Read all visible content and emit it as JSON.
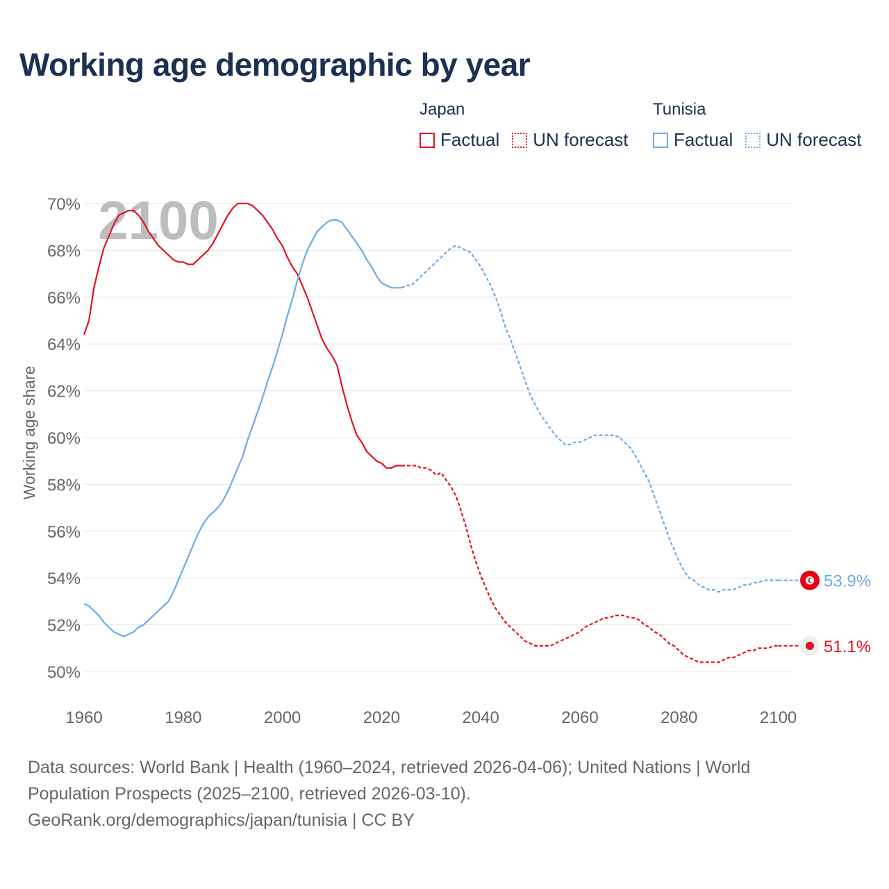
{
  "title": "Working age demographic by year",
  "footer": {
    "line1": "Data sources: World Bank | Health (1960–2024, retrieved 2026-04-06); United Nations | World",
    "line2": "Population Prospects (2025–2100, retrieved 2026-03-10).",
    "line3": "GeoRank.org/demographics/japan/tunisia | CC BY"
  },
  "legend": {
    "japan": {
      "heading": "Japan",
      "factual": "Factual",
      "forecast": "UN forecast"
    },
    "tunisia": {
      "heading": "Tunisia",
      "factual": "Factual",
      "forecast": "UN forecast"
    }
  },
  "chart_data": {
    "type": "line",
    "title": "Working age demographic by year",
    "year_watermark": "2100",
    "xlabel": "",
    "ylabel": "Working age share",
    "xlim": [
      1960,
      2103
    ],
    "ylim": [
      50,
      70
    ],
    "x_ticks": [
      1960,
      1980,
      2000,
      2020,
      2040,
      2060,
      2080,
      2100
    ],
    "y_ticks": [
      50,
      52,
      54,
      56,
      58,
      60,
      62,
      64,
      66,
      68,
      70
    ],
    "y_tick_suffix": "%",
    "grid": true,
    "factual_end_year": 2024,
    "series": [
      {
        "name": "Japan",
        "color": "#e5111d",
        "end_label": "51.1%",
        "points": [
          [
            1960,
            64.4
          ],
          [
            1961,
            65.0
          ],
          [
            1962,
            66.4
          ],
          [
            1963,
            67.3
          ],
          [
            1964,
            68.1
          ],
          [
            1965,
            68.6
          ],
          [
            1966,
            69.1
          ],
          [
            1967,
            69.5
          ],
          [
            1968,
            69.6
          ],
          [
            1969,
            69.7
          ],
          [
            1970,
            69.7
          ],
          [
            1971,
            69.5
          ],
          [
            1972,
            69.2
          ],
          [
            1973,
            68.8
          ],
          [
            1974,
            68.5
          ],
          [
            1975,
            68.2
          ],
          [
            1976,
            68.0
          ],
          [
            1977,
            67.8
          ],
          [
            1978,
            67.6
          ],
          [
            1979,
            67.5
          ],
          [
            1980,
            67.5
          ],
          [
            1981,
            67.4
          ],
          [
            1982,
            67.4
          ],
          [
            1983,
            67.6
          ],
          [
            1984,
            67.8
          ],
          [
            1985,
            68.0
          ],
          [
            1986,
            68.3
          ],
          [
            1987,
            68.7
          ],
          [
            1988,
            69.1
          ],
          [
            1989,
            69.5
          ],
          [
            1990,
            69.8
          ],
          [
            1991,
            70.0
          ],
          [
            1992,
            70.0
          ],
          [
            1993,
            70.0
          ],
          [
            1994,
            69.9
          ],
          [
            1995,
            69.7
          ],
          [
            1996,
            69.5
          ],
          [
            1997,
            69.2
          ],
          [
            1998,
            68.9
          ],
          [
            1999,
            68.5
          ],
          [
            2000,
            68.2
          ],
          [
            2001,
            67.7
          ],
          [
            2002,
            67.3
          ],
          [
            2003,
            67.0
          ],
          [
            2004,
            66.5
          ],
          [
            2005,
            66.0
          ],
          [
            2006,
            65.4
          ],
          [
            2007,
            64.8
          ],
          [
            2008,
            64.2
          ],
          [
            2009,
            63.8
          ],
          [
            2010,
            63.5
          ],
          [
            2011,
            63.1
          ],
          [
            2012,
            62.2
          ],
          [
            2013,
            61.4
          ],
          [
            2014,
            60.7
          ],
          [
            2015,
            60.1
          ],
          [
            2016,
            59.8
          ],
          [
            2017,
            59.4
          ],
          [
            2018,
            59.2
          ],
          [
            2019,
            59.0
          ],
          [
            2020,
            58.9
          ],
          [
            2021,
            58.7
          ],
          [
            2022,
            58.7
          ],
          [
            2023,
            58.8
          ],
          [
            2024,
            58.8
          ],
          [
            2025,
            58.8
          ],
          [
            2026,
            58.8
          ],
          [
            2027,
            58.8
          ],
          [
            2028,
            58.7
          ],
          [
            2029,
            58.7
          ],
          [
            2030,
            58.6
          ],
          [
            2031,
            58.4
          ],
          [
            2032,
            58.5
          ],
          [
            2033,
            58.2
          ],
          [
            2034,
            57.9
          ],
          [
            2035,
            57.5
          ],
          [
            2036,
            56.9
          ],
          [
            2037,
            56.2
          ],
          [
            2038,
            55.4
          ],
          [
            2039,
            54.7
          ],
          [
            2040,
            54.1
          ],
          [
            2041,
            53.6
          ],
          [
            2042,
            53.1
          ],
          [
            2043,
            52.7
          ],
          [
            2044,
            52.4
          ],
          [
            2045,
            52.1
          ],
          [
            2046,
            51.9
          ],
          [
            2047,
            51.7
          ],
          [
            2048,
            51.5
          ],
          [
            2049,
            51.3
          ],
          [
            2050,
            51.2
          ],
          [
            2051,
            51.1
          ],
          [
            2052,
            51.1
          ],
          [
            2053,
            51.1
          ],
          [
            2054,
            51.1
          ],
          [
            2055,
            51.2
          ],
          [
            2056,
            51.3
          ],
          [
            2057,
            51.4
          ],
          [
            2058,
            51.5
          ],
          [
            2059,
            51.6
          ],
          [
            2060,
            51.7
          ],
          [
            2061,
            51.9
          ],
          [
            2062,
            52.0
          ],
          [
            2063,
            52.1
          ],
          [
            2064,
            52.2
          ],
          [
            2065,
            52.3
          ],
          [
            2066,
            52.3
          ],
          [
            2067,
            52.4
          ],
          [
            2068,
            52.4
          ],
          [
            2069,
            52.4
          ],
          [
            2070,
            52.3
          ],
          [
            2071,
            52.3
          ],
          [
            2072,
            52.2
          ],
          [
            2073,
            52.0
          ],
          [
            2074,
            51.9
          ],
          [
            2075,
            51.7
          ],
          [
            2076,
            51.6
          ],
          [
            2077,
            51.4
          ],
          [
            2078,
            51.2
          ],
          [
            2079,
            51.1
          ],
          [
            2080,
            50.9
          ],
          [
            2081,
            50.7
          ],
          [
            2082,
            50.6
          ],
          [
            2083,
            50.5
          ],
          [
            2084,
            50.4
          ],
          [
            2085,
            50.4
          ],
          [
            2086,
            50.4
          ],
          [
            2087,
            50.4
          ],
          [
            2088,
            50.4
          ],
          [
            2089,
            50.5
          ],
          [
            2090,
            50.6
          ],
          [
            2091,
            50.6
          ],
          [
            2092,
            50.7
          ],
          [
            2093,
            50.8
          ],
          [
            2094,
            50.9
          ],
          [
            2095,
            50.9
          ],
          [
            2096,
            51.0
          ],
          [
            2097,
            51.0
          ],
          [
            2098,
            51.0
          ],
          [
            2099,
            51.1
          ],
          [
            2100,
            51.1
          ]
        ]
      },
      {
        "name": "Tunisia",
        "color": "#6aabe6",
        "end_label": "53.9%",
        "points": [
          [
            1960,
            52.9
          ],
          [
            1961,
            52.8
          ],
          [
            1962,
            52.6
          ],
          [
            1963,
            52.4
          ],
          [
            1964,
            52.1
          ],
          [
            1965,
            51.9
          ],
          [
            1966,
            51.7
          ],
          [
            1967,
            51.6
          ],
          [
            1968,
            51.5
          ],
          [
            1969,
            51.6
          ],
          [
            1970,
            51.7
          ],
          [
            1971,
            51.9
          ],
          [
            1972,
            52.0
          ],
          [
            1973,
            52.2
          ],
          [
            1974,
            52.4
          ],
          [
            1975,
            52.6
          ],
          [
            1976,
            52.8
          ],
          [
            1977,
            53.0
          ],
          [
            1978,
            53.4
          ],
          [
            1979,
            53.9
          ],
          [
            1980,
            54.4
          ],
          [
            1981,
            54.9
          ],
          [
            1982,
            55.4
          ],
          [
            1983,
            55.9
          ],
          [
            1984,
            56.3
          ],
          [
            1985,
            56.6
          ],
          [
            1986,
            56.8
          ],
          [
            1987,
            57.0
          ],
          [
            1988,
            57.3
          ],
          [
            1989,
            57.7
          ],
          [
            1990,
            58.2
          ],
          [
            1991,
            58.7
          ],
          [
            1992,
            59.2
          ],
          [
            1993,
            59.9
          ],
          [
            1994,
            60.5
          ],
          [
            1995,
            61.1
          ],
          [
            1996,
            61.7
          ],
          [
            1997,
            62.4
          ],
          [
            1998,
            63.0
          ],
          [
            1999,
            63.7
          ],
          [
            2000,
            64.4
          ],
          [
            2001,
            65.2
          ],
          [
            2002,
            65.9
          ],
          [
            2003,
            66.7
          ],
          [
            2004,
            67.4
          ],
          [
            2005,
            68.0
          ],
          [
            2006,
            68.4
          ],
          [
            2007,
            68.8
          ],
          [
            2008,
            69.0
          ],
          [
            2009,
            69.2
          ],
          [
            2010,
            69.3
          ],
          [
            2011,
            69.3
          ],
          [
            2012,
            69.2
          ],
          [
            2013,
            68.9
          ],
          [
            2014,
            68.6
          ],
          [
            2015,
            68.3
          ],
          [
            2016,
            68.0
          ],
          [
            2017,
            67.6
          ],
          [
            2018,
            67.3
          ],
          [
            2019,
            66.9
          ],
          [
            2020,
            66.6
          ],
          [
            2021,
            66.5
          ],
          [
            2022,
            66.4
          ],
          [
            2023,
            66.4
          ],
          [
            2024,
            66.4
          ],
          [
            2025,
            66.5
          ],
          [
            2026,
            66.5
          ],
          [
            2027,
            66.7
          ],
          [
            2028,
            66.9
          ],
          [
            2029,
            67.1
          ],
          [
            2030,
            67.3
          ],
          [
            2031,
            67.5
          ],
          [
            2032,
            67.7
          ],
          [
            2033,
            67.9
          ],
          [
            2034,
            68.1
          ],
          [
            2035,
            68.2
          ],
          [
            2036,
            68.1
          ],
          [
            2037,
            68.0
          ],
          [
            2038,
            67.9
          ],
          [
            2039,
            67.6
          ],
          [
            2040,
            67.3
          ],
          [
            2041,
            66.9
          ],
          [
            2042,
            66.5
          ],
          [
            2043,
            66.0
          ],
          [
            2044,
            65.4
          ],
          [
            2045,
            64.7
          ],
          [
            2046,
            64.2
          ],
          [
            2047,
            63.6
          ],
          [
            2048,
            63.0
          ],
          [
            2049,
            62.4
          ],
          [
            2050,
            61.8
          ],
          [
            2051,
            61.4
          ],
          [
            2052,
            61.0
          ],
          [
            2053,
            60.7
          ],
          [
            2054,
            60.4
          ],
          [
            2055,
            60.1
          ],
          [
            2056,
            59.9
          ],
          [
            2057,
            59.7
          ],
          [
            2058,
            59.7
          ],
          [
            2059,
            59.8
          ],
          [
            2060,
            59.8
          ],
          [
            2061,
            59.9
          ],
          [
            2062,
            60.0
          ],
          [
            2063,
            60.1
          ],
          [
            2064,
            60.1
          ],
          [
            2065,
            60.1
          ],
          [
            2066,
            60.1
          ],
          [
            2067,
            60.1
          ],
          [
            2068,
            60.0
          ],
          [
            2069,
            59.8
          ],
          [
            2070,
            59.6
          ],
          [
            2071,
            59.3
          ],
          [
            2072,
            58.9
          ],
          [
            2073,
            58.5
          ],
          [
            2074,
            58.1
          ],
          [
            2075,
            57.5
          ],
          [
            2076,
            56.9
          ],
          [
            2077,
            56.3
          ],
          [
            2078,
            55.7
          ],
          [
            2079,
            55.2
          ],
          [
            2080,
            54.7
          ],
          [
            2081,
            54.3
          ],
          [
            2082,
            54.0
          ],
          [
            2083,
            53.9
          ],
          [
            2084,
            53.7
          ],
          [
            2085,
            53.6
          ],
          [
            2086,
            53.5
          ],
          [
            2087,
            53.5
          ],
          [
            2088,
            53.4
          ],
          [
            2089,
            53.5
          ],
          [
            2090,
            53.5
          ],
          [
            2091,
            53.5
          ],
          [
            2092,
            53.6
          ],
          [
            2093,
            53.7
          ],
          [
            2094,
            53.7
          ],
          [
            2095,
            53.8
          ],
          [
            2096,
            53.8
          ],
          [
            2097,
            53.9
          ],
          [
            2098,
            53.9
          ],
          [
            2099,
            53.9
          ],
          [
            2100,
            53.9
          ]
        ]
      }
    ]
  }
}
